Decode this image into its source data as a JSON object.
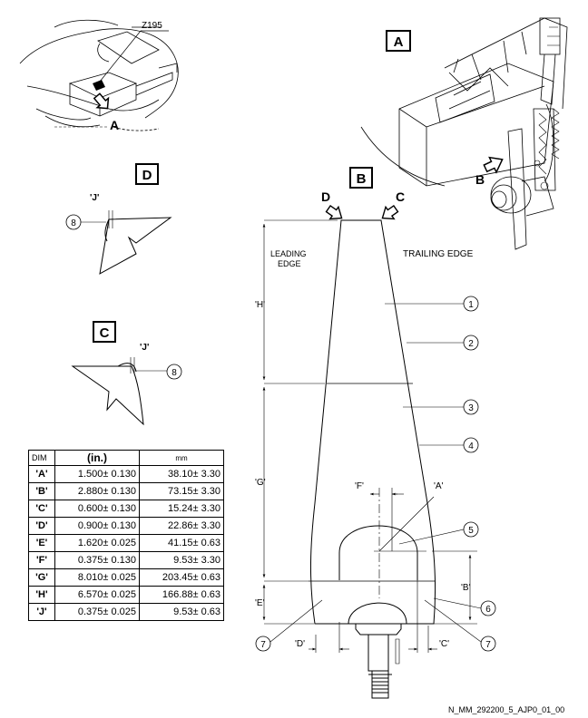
{
  "views": {
    "view_a_box": "A",
    "view_b_box": "B",
    "view_c_box": "C",
    "view_d_box": "D"
  },
  "locator": {
    "zone": "Z195",
    "arrow_label": "A"
  },
  "view_a": {
    "arrow_label": "B"
  },
  "view_b": {
    "arrow_d": "D",
    "arrow_c": "C",
    "leading_edge_line1": "LEADING",
    "leading_edge_line2": "EDGE",
    "trailing_edge": "TRAILING EDGE",
    "dims": [
      "'H'",
      "'G'",
      "'E'",
      "'F'",
      "'A'",
      "'B'",
      "'D'",
      "'C'"
    ]
  },
  "view_d": {
    "dim": "'J'",
    "callout": "8"
  },
  "view_c": {
    "dim": "'J'",
    "callout": "8"
  },
  "callouts": [
    "1",
    "2",
    "3",
    "4",
    "5",
    "6",
    "7",
    "7"
  ],
  "table": {
    "headers": [
      "DIM",
      "(in.)",
      "mm"
    ],
    "rows": [
      {
        "dim": "'A'",
        "in": "1.500± 0.130",
        "mm": "38.10± 3.30"
      },
      {
        "dim": "'B'",
        "in": "2.880± 0.130",
        "mm": "73.15± 3.30"
      },
      {
        "dim": "'C'",
        "in": "0.600± 0.130",
        "mm": "15.24± 3.30"
      },
      {
        "dim": "'D'",
        "in": "0.900± 0.130",
        "mm": "22.86± 3.30"
      },
      {
        "dim": "'E'",
        "in": "1.620± 0.025",
        "mm": "41.15± 0.63"
      },
      {
        "dim": "'F'",
        "in": "0.375± 0.130",
        "mm": "9.53± 3.30"
      },
      {
        "dim": "'G'",
        "in": "8.010± 0.025",
        "mm": "203.45± 0.63"
      },
      {
        "dim": "'H'",
        "in": "6.570± 0.025",
        "mm": "166.88± 0.63"
      },
      {
        "dim": "'J'",
        "in": "0.375± 0.025",
        "mm": "9.53± 0.63"
      }
    ]
  },
  "footer": "N_MM_292200_5_AJP0_01_00"
}
